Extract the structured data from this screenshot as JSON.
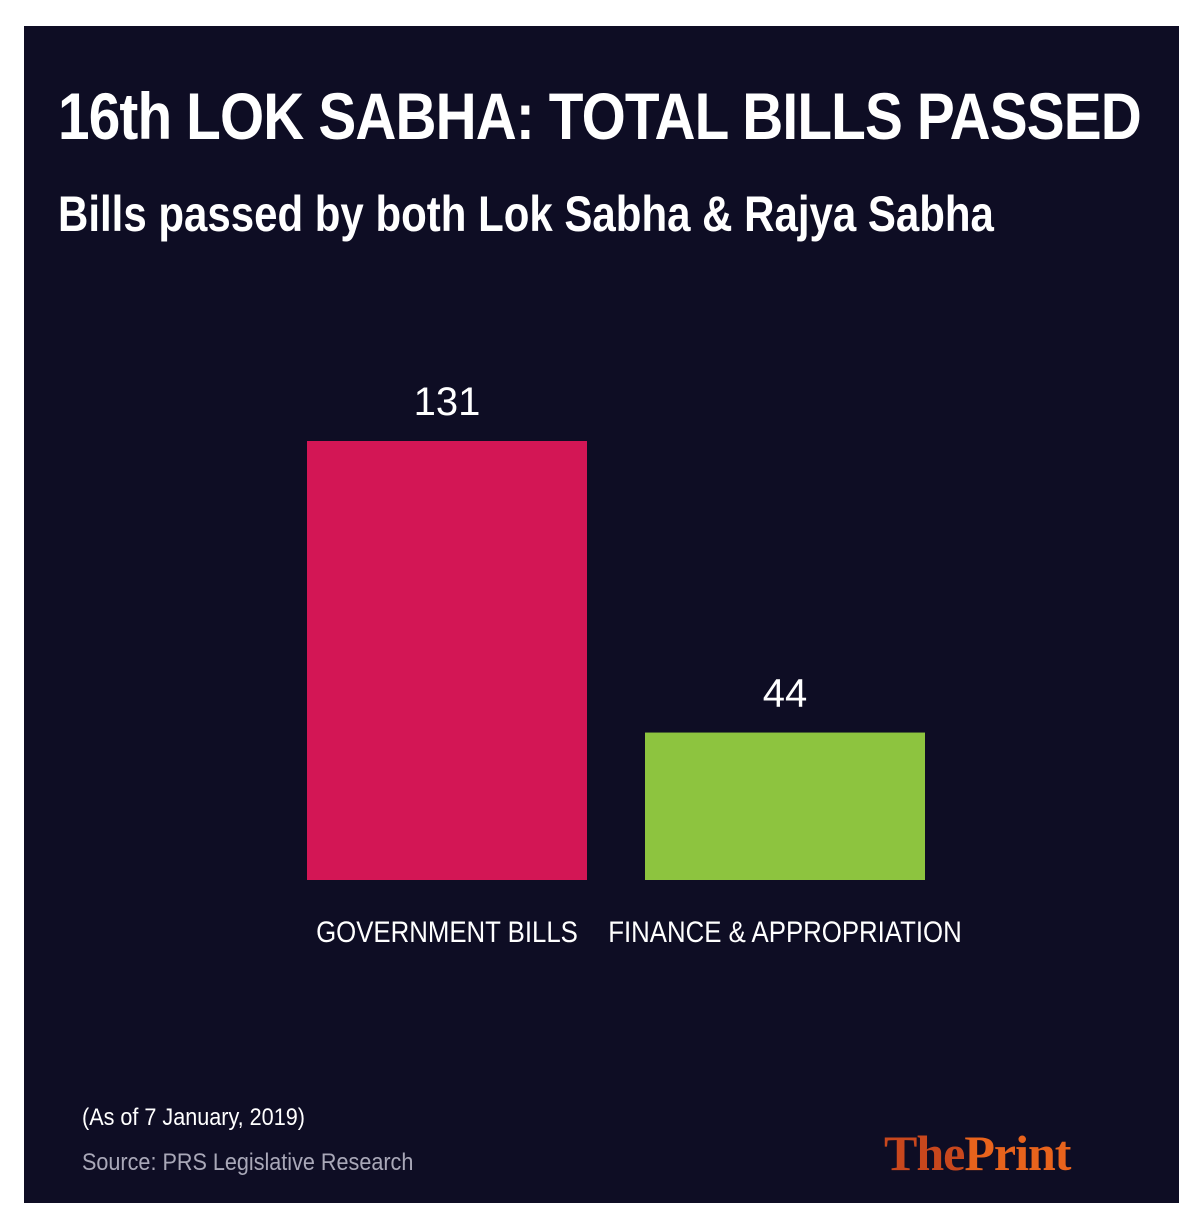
{
  "chart_data": {
    "type": "bar",
    "title": "16th LOK SABHA: TOTAL BILLS PASSED",
    "subtitle": "Bills passed by both Lok Sabha & Rajya Sabha",
    "categories": [
      "GOVERNMENT BILLS",
      "FINANCE & APPROPRIATION"
    ],
    "values": [
      131,
      44
    ],
    "data_labels": [
      "131",
      "44"
    ],
    "colors": [
      "#d31655",
      "#8dc43f"
    ],
    "xlabel": "",
    "ylabel": "",
    "ylim": [
      0,
      131
    ],
    "grid": false,
    "legend": "none"
  },
  "footer": {
    "note": "(As of 7 January, 2019)",
    "source": "Source: PRS Legislative Research"
  },
  "logo": {
    "part1": "The",
    "part2": "Print",
    "part1_color": "#c8471d",
    "part2_color": "#e8631c"
  },
  "theme": {
    "background": "#0e0d24"
  }
}
